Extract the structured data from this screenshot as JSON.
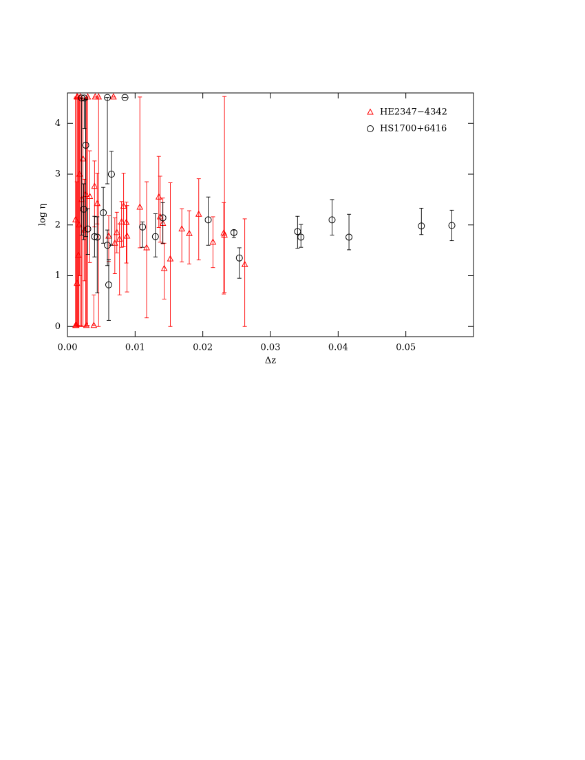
{
  "chart_data": {
    "type": "scatter",
    "xlabel": "Δz",
    "ylabel": "log η",
    "xlim": [
      0,
      0.06
    ],
    "ylim": [
      -0.2,
      4.6
    ],
    "xticks": [
      {
        "value": 0,
        "label": "0.00"
      },
      0.01,
      0.02,
      0.03,
      0.04,
      0.05
    ],
    "yticks": [
      0,
      1,
      2,
      3,
      4
    ],
    "legend": "upper right",
    "series": [
      {
        "name": "HE2347−4342",
        "color": "#ff0000",
        "marker": "triangle",
        "x": [
          0.0262,
          0.0232,
          0.0231,
          0.0215,
          0.0194,
          0.018,
          0.0169,
          0.0152,
          0.0143,
          0.0141,
          0.0135,
          0.0137,
          0.0117,
          0.0107,
          0.0088,
          0.0087,
          0.0083,
          0.008,
          0.0077,
          0.0073,
          0.007,
          0.0068,
          0.0061,
          0.0046,
          0.0044,
          0.004,
          0.0039,
          0.0041,
          0.0033,
          0.003,
          0.0027,
          0.0025,
          0.0023,
          0.0021,
          0.0019,
          0.0018,
          0.0016,
          0.0015,
          0.0014,
          0.0013,
          0.0012,
          0.0012,
          0.0014,
          0.0017,
          0.0028
        ],
        "values": [
          1.22,
          1.8,
          1.84,
          1.66,
          2.21,
          1.83,
          1.92,
          1.33,
          1.14,
          2.03,
          2.55,
          2.16,
          1.55,
          2.35,
          1.78,
          2.05,
          2.37,
          2.06,
          1.72,
          1.85,
          1.64,
          4.52,
          1.78,
          4.52,
          2.42,
          2.76,
          0.02,
          4.52,
          2.56,
          4.52,
          2.6,
          1.9,
          3.3,
          2.5,
          4.52,
          3.0,
          1.4,
          4.52,
          0.85,
          0.02,
          2.1,
          0.02,
          4.52,
          2.0,
          0.02
        ],
        "err_low": [
          1.22,
          1.13,
          1.2,
          0.5,
          0.9,
          0.6,
          0.65,
          1.33,
          0.6,
          0.4,
          0.6,
          0.5,
          1.38,
          0.8,
          1.1,
          0.8,
          0.8,
          0.5,
          1.1,
          0.4,
          0.6,
          0,
          0.5,
          4.52,
          0.4,
          0.8,
          0,
          0,
          1.3,
          4.5,
          2.6,
          1.0,
          3.3,
          2.5,
          4.5,
          2.0,
          1.4,
          4.5,
          0.85,
          0,
          2.1,
          0,
          0,
          2.0,
          0
        ],
        "err_high": [
          0.9,
          2.73,
          0.6,
          0.5,
          0.7,
          0.45,
          0.4,
          1.5,
          0.5,
          0.5,
          0.8,
          0.8,
          1.3,
          2.17,
          0.6,
          0.4,
          0.65,
          0.4,
          0.3,
          0.4,
          0.5,
          0,
          0.4,
          0,
          0.6,
          0.5,
          0.6,
          0,
          0.9,
          0,
          1.9,
          1.0,
          1.2,
          2.0,
          0,
          1.5,
          3.1,
          0,
          2.0,
          4.5,
          2.4,
          0,
          0,
          2.5,
          4.5
        ]
      },
      {
        "name": "HS1700+6416",
        "color": "#000000",
        "marker": "circle",
        "x": [
          0.0021,
          0.0025,
          0.0027,
          0.0024,
          0.003,
          0.004,
          0.0044,
          0.0053,
          0.0059,
          0.0059,
          0.0061,
          0.0065,
          0.0085,
          0.0111,
          0.013,
          0.0141,
          0.0208,
          0.0246,
          0.0254,
          0.034,
          0.0345,
          0.0391,
          0.0416,
          0.0523,
          0.0568
        ],
        "values": [
          4.5,
          4.5,
          3.57,
          2.31,
          1.92,
          1.77,
          1.76,
          2.24,
          4.51,
          1.6,
          0.82,
          3.0,
          4.51,
          1.96,
          1.77,
          2.14,
          2.1,
          1.85,
          1.35,
          1.87,
          1.76,
          2.1,
          1.76,
          1.98,
          1.99
        ],
        "err_low": [
          2.7,
          0.6,
          1.8,
          0.6,
          0.5,
          0.4,
          1.1,
          0.6,
          1.7,
          0.4,
          0.7,
          1.4,
          0,
          0.4,
          0.4,
          0.5,
          0.5,
          0.1,
          0.4,
          0.33,
          0.2,
          0.3,
          0.25,
          0.17,
          0.3
        ],
        "err_high": [
          0,
          0,
          0.9,
          0.5,
          0.4,
          0.4,
          0.4,
          0.5,
          0,
          0.3,
          0.5,
          0.45,
          0,
          0.1,
          0.45,
          0.3,
          0.45,
          0.05,
          0.2,
          0.3,
          0.25,
          0.4,
          0.45,
          0.35,
          0.3
        ]
      }
    ]
  }
}
